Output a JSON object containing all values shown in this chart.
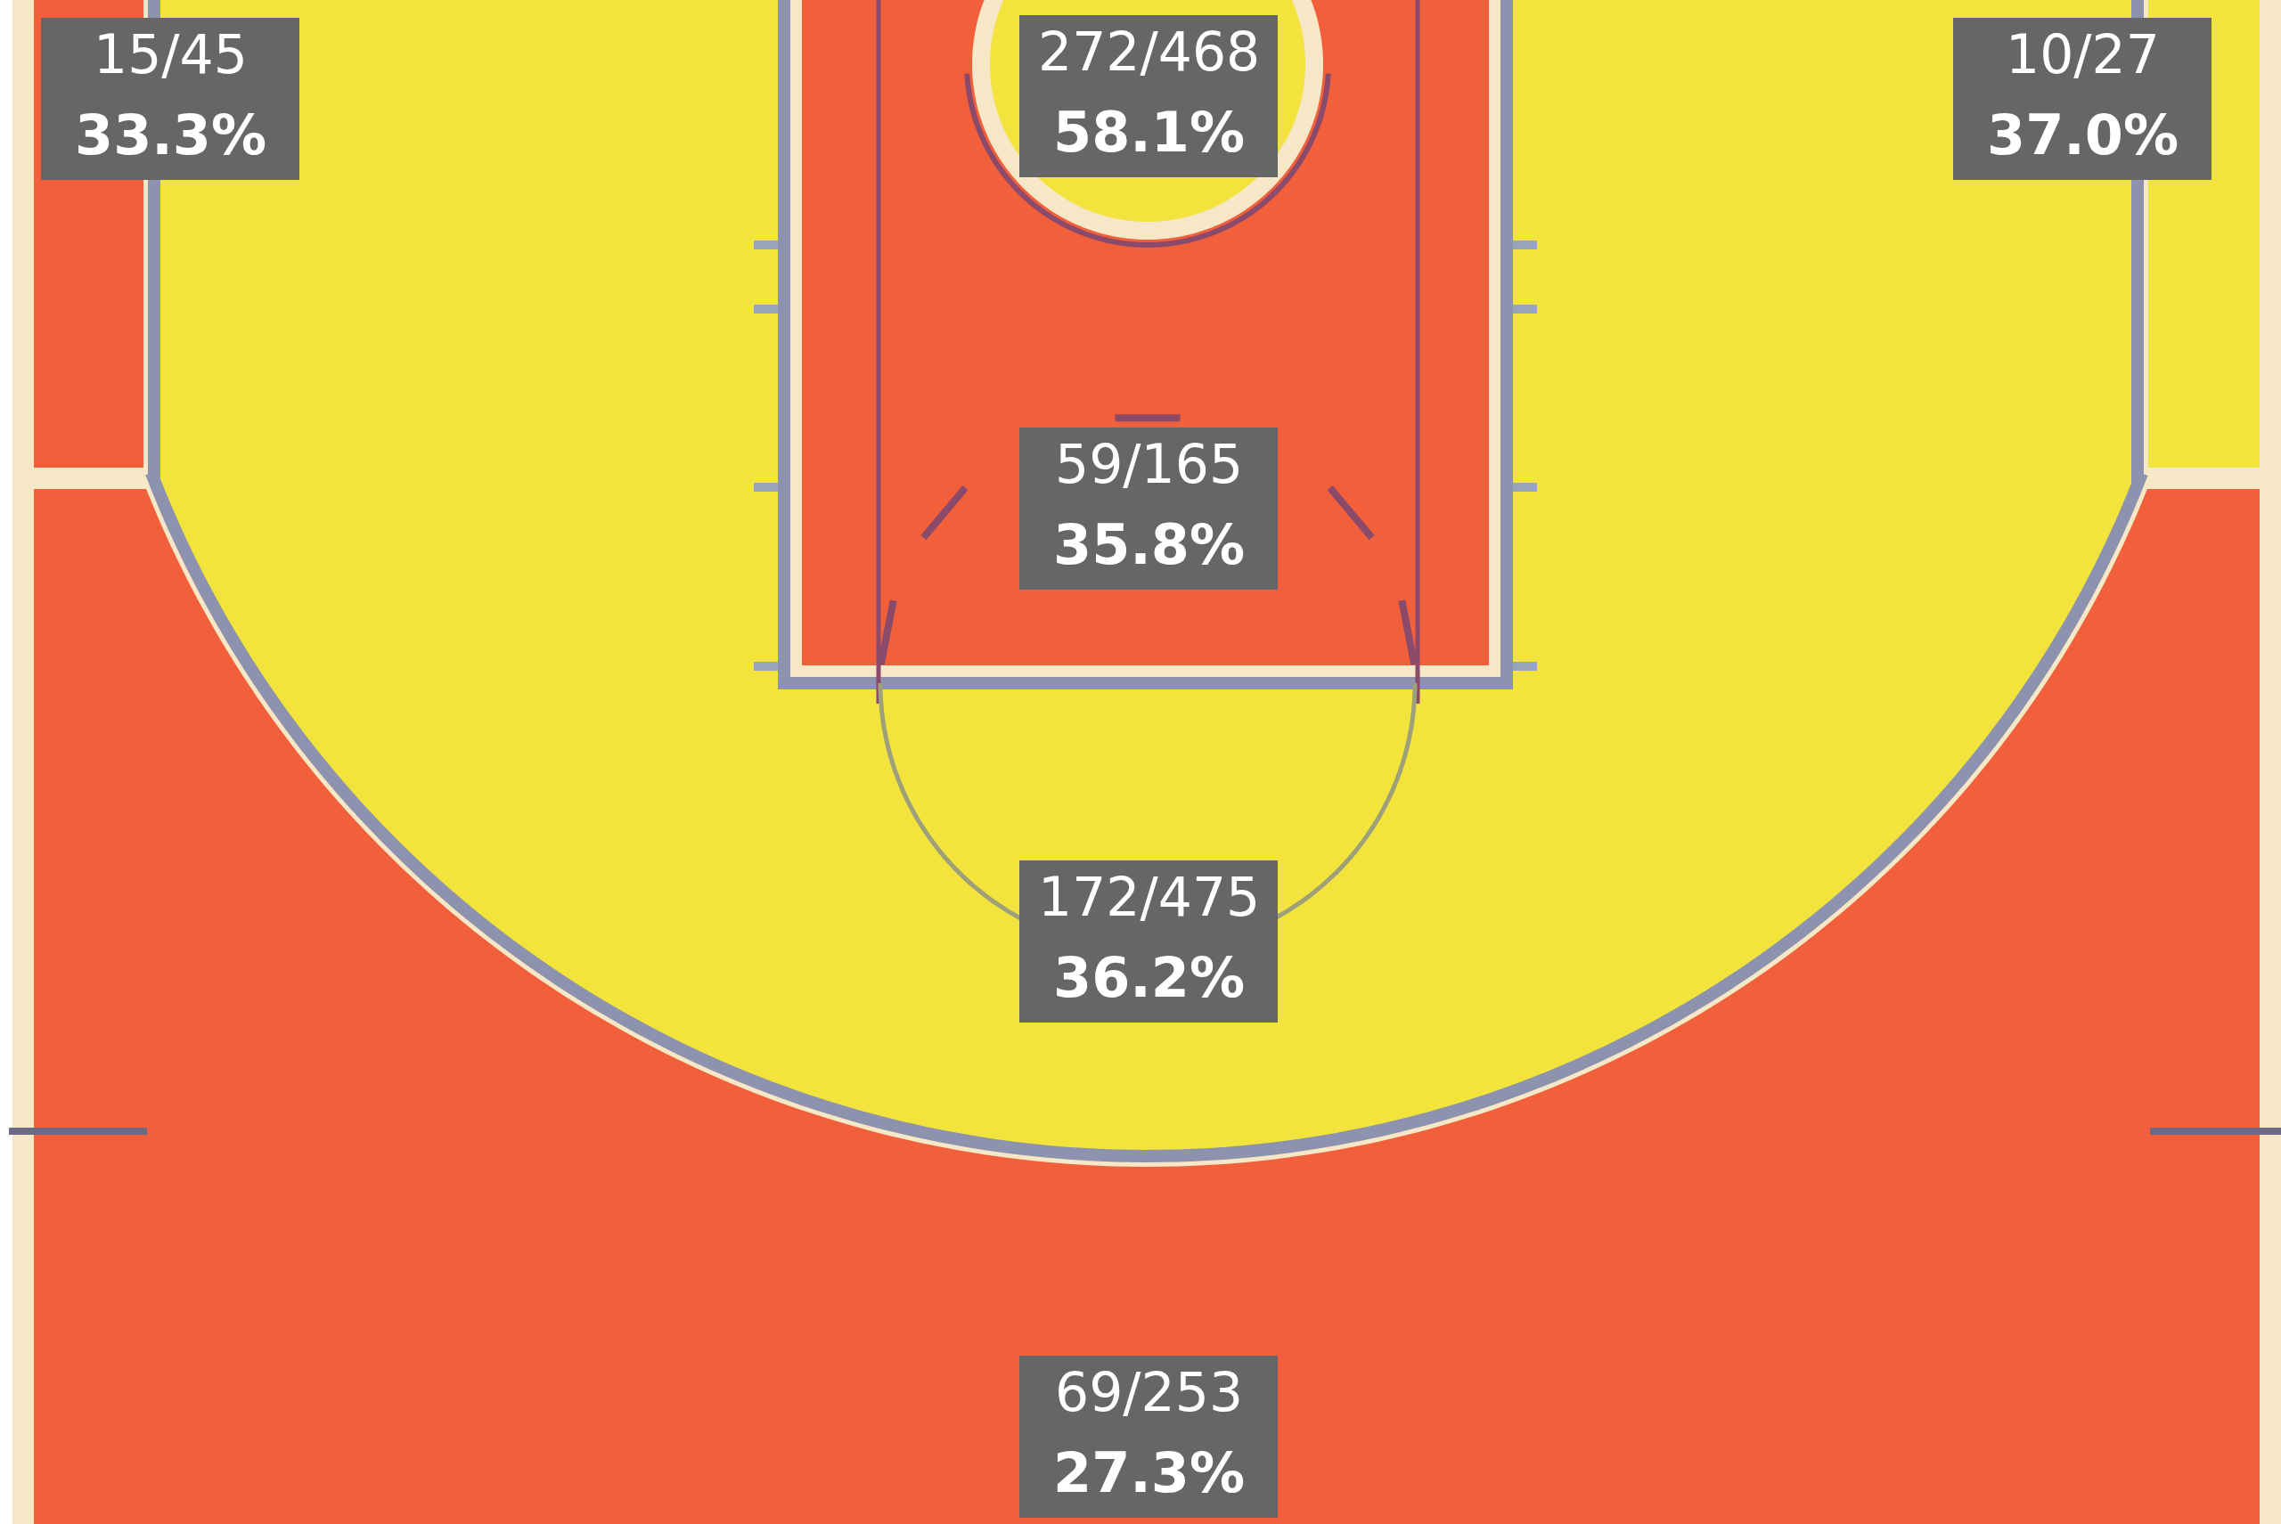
{
  "chart_data": {
    "type": "other",
    "categories": [
      null,
      null,
      null,
      null,
      null,
      null
    ],
    "colors": [
      "#f15f3b",
      "#f2e43c",
      "#f2e43c",
      "#f15f3b",
      "#f2e43c",
      "#f15f3b"
    ],
    "values": [
      33.3,
      58.1,
      37.0,
      35.8,
      36.2,
      27.3
    ],
    "value_labels": [
      "33.3%",
      "58.1%",
      "37.0%",
      "35.8%",
      "36.2%",
      "27.3%"
    ],
    "annotations": [
      "15/45",
      "272/468",
      "10/27",
      "59/165",
      "172/475",
      "69/253"
    ]
  }
}
